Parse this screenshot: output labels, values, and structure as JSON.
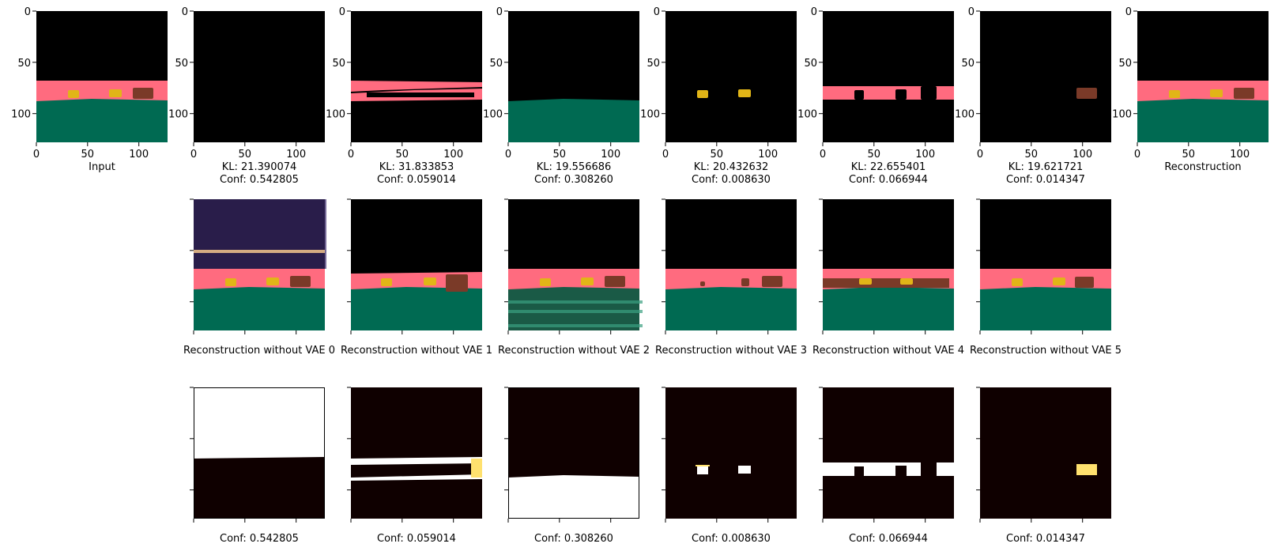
{
  "figure": {
    "colors": {
      "black": "#000000",
      "floor_green": "#006a52",
      "wall_pink": "#ff6b7f",
      "object_yellow": "#e1b517",
      "object_brown": "#7a3a28",
      "heat_dark": "#0f0000",
      "heat_red": "#c81e0a",
      "heat_white": "#ffffff",
      "heat_yellow": "#ffe16e"
    },
    "axis_ticks": {
      "x": [
        "0",
        "50",
        "100"
      ],
      "y": [
        "0",
        "50",
        "100"
      ]
    },
    "row1": {
      "input_label": "Input",
      "reconstruction_label": "Reconstruction",
      "slots": [
        {
          "kl": "KL: 21.390074",
          "conf": "Conf: 0.542805"
        },
        {
          "kl": "KL: 31.833853",
          "conf": "Conf: 0.059014"
        },
        {
          "kl": "KL: 19.556686",
          "conf": "Conf: 0.308260"
        },
        {
          "kl": "KL: 20.432632",
          "conf": "Conf: 0.008630"
        },
        {
          "kl": "KL: 22.655401",
          "conf": "Conf: 0.066944"
        },
        {
          "kl": "KL: 19.621721",
          "conf": "Conf: 0.014347"
        }
      ]
    },
    "row2": {
      "labels": [
        "Reconstruction without VAE 0",
        "Reconstruction without VAE 1",
        "Reconstruction without VAE 2",
        "Reconstruction without VAE 3",
        "Reconstruction without VAE 4",
        "Reconstruction without VAE 5"
      ]
    },
    "row3": {
      "labels": [
        "Conf: 0.542805",
        "Conf: 0.059014",
        "Conf: 0.308260",
        "Conf: 0.008630",
        "Conf: 0.066944",
        "Conf: 0.014347"
      ]
    }
  }
}
